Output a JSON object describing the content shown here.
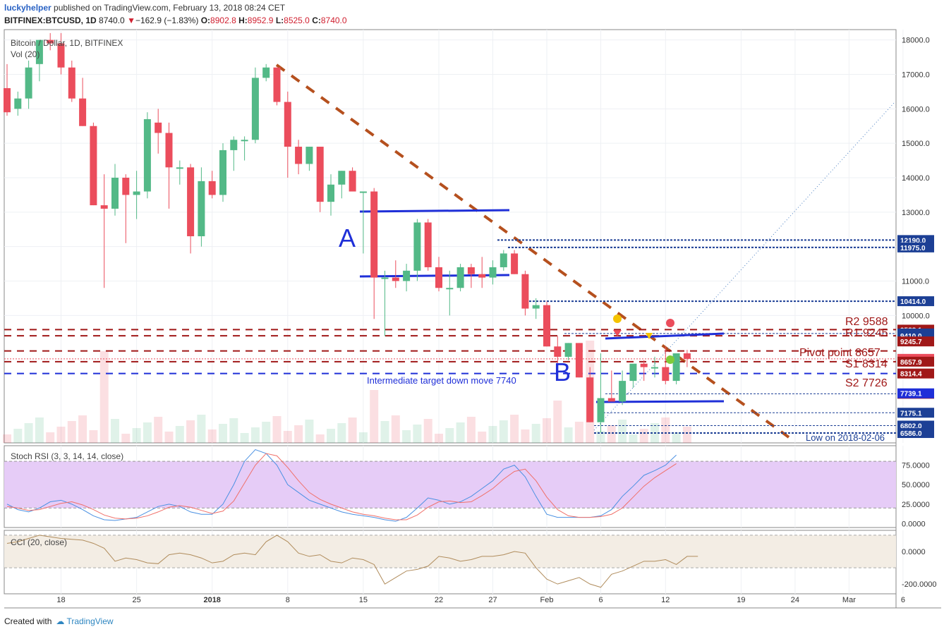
{
  "header": {
    "user": "luckyhelper",
    "published": "published on TradingView.com, February 13, 2018 08:24 CET",
    "symbol": "BITFINEX:BTCUSD, 1D",
    "last": "8740.0",
    "arrow": "▼",
    "change": "−162.9 (−1.83%)",
    "ohlc_o_label": "O:",
    "ohlc_o": "8902.8",
    "ohlc_h_label": "H:",
    "ohlc_h": "8952.9",
    "ohlc_l_label": "L:",
    "ohlc_l": "8525.0",
    "ohlc_c_label": "C:",
    "ohlc_c": "8740.0"
  },
  "footer": {
    "created": "Created with",
    "brand": "TradingView"
  },
  "colors": {
    "up": "#53b987",
    "down": "#eb4d5c",
    "trend": "#b5501e",
    "blue": "#1f2fd8",
    "pivot": "#a01818",
    "stoch_k": "#4a90e2",
    "stoch_d": "#f0706a",
    "cci": "#b08c5c"
  },
  "chart_data": [
    {
      "type": "candlestick",
      "title": "Bitcoin / Dollar, 1D, BITFINEX",
      "subtitle": "Vol (20)",
      "ylim": [
        6300,
        18300
      ],
      "y_ticks": [
        "18000.0",
        "17000.0",
        "16000.0",
        "15000.0",
        "14000.0",
        "13000.0",
        "12000.0",
        "11000.0",
        "10000.0"
      ],
      "x_ticks": [
        "18",
        "25",
        "2018",
        "8",
        "15",
        "22",
        "27",
        "Feb",
        "6",
        "12",
        "19",
        "24",
        "Mar",
        "6"
      ],
      "candles": [
        {
          "o": 16600,
          "h": 17300,
          "l": 15800,
          "c": 15900
        },
        {
          "o": 16000,
          "h": 16500,
          "l": 15800,
          "c": 16300
        },
        {
          "o": 16300,
          "h": 17400,
          "l": 16000,
          "c": 17200
        },
        {
          "o": 17300,
          "h": 18000,
          "l": 16800,
          "c": 18000
        },
        {
          "o": 18000,
          "h": 18200,
          "l": 17700,
          "c": 17900
        },
        {
          "o": 17900,
          "h": 18200,
          "l": 17000,
          "c": 17200
        },
        {
          "o": 17200,
          "h": 17400,
          "l": 16200,
          "c": 16300
        },
        {
          "o": 16300,
          "h": 16900,
          "l": 15500,
          "c": 15500
        },
        {
          "o": 15500,
          "h": 15600,
          "l": 13200,
          "c": 13200
        },
        {
          "o": 13200,
          "h": 14100,
          "l": 10800,
          "c": 13100
        },
        {
          "o": 13100,
          "h": 14400,
          "l": 12900,
          "c": 14000
        },
        {
          "o": 14000,
          "h": 14100,
          "l": 12100,
          "c": 13500
        },
        {
          "o": 13500,
          "h": 14200,
          "l": 12800,
          "c": 13600
        },
        {
          "o": 13600,
          "h": 15900,
          "l": 13400,
          "c": 15700
        },
        {
          "o": 15600,
          "h": 16000,
          "l": 14700,
          "c": 15300
        },
        {
          "o": 15300,
          "h": 15600,
          "l": 13100,
          "c": 14300
        },
        {
          "o": 14300,
          "h": 14500,
          "l": 13800,
          "c": 14300
        },
        {
          "o": 14300,
          "h": 14400,
          "l": 11800,
          "c": 12300
        },
        {
          "o": 12300,
          "h": 14300,
          "l": 12000,
          "c": 13900
        },
        {
          "o": 13900,
          "h": 14200,
          "l": 13400,
          "c": 13500
        },
        {
          "o": 13500,
          "h": 15000,
          "l": 13300,
          "c": 14800
        },
        {
          "o": 14800,
          "h": 15200,
          "l": 14200,
          "c": 15100
        },
        {
          "o": 15100,
          "h": 15200,
          "l": 14500,
          "c": 15100
        },
        {
          "o": 15100,
          "h": 17200,
          "l": 15000,
          "c": 16900
        },
        {
          "o": 16900,
          "h": 17300,
          "l": 16800,
          "c": 17200
        },
        {
          "o": 17200,
          "h": 17200,
          "l": 16100,
          "c": 16200
        },
        {
          "o": 16200,
          "h": 16500,
          "l": 14000,
          "c": 14900
        },
        {
          "o": 14900,
          "h": 15100,
          "l": 14100,
          "c": 14400
        },
        {
          "o": 14400,
          "h": 14900,
          "l": 14200,
          "c": 14900
        },
        {
          "o": 14900,
          "h": 14900,
          "l": 13000,
          "c": 13300
        },
        {
          "o": 13300,
          "h": 14100,
          "l": 12900,
          "c": 13800
        },
        {
          "o": 13800,
          "h": 14200,
          "l": 13400,
          "c": 14200
        },
        {
          "o": 14200,
          "h": 14300,
          "l": 13600,
          "c": 13600
        },
        {
          "o": 13600,
          "h": 13600,
          "l": 11800,
          "c": 13600
        },
        {
          "o": 13600,
          "h": 13700,
          "l": 9900,
          "c": 11100
        },
        {
          "o": 11100,
          "h": 11300,
          "l": 9400,
          "c": 11100
        },
        {
          "o": 11100,
          "h": 11600,
          "l": 10800,
          "c": 11000
        },
        {
          "o": 11000,
          "h": 11500,
          "l": 10700,
          "c": 11300
        },
        {
          "o": 11300,
          "h": 12800,
          "l": 11000,
          "c": 12700
        },
        {
          "o": 12700,
          "h": 12800,
          "l": 11300,
          "c": 11400
        },
        {
          "o": 11400,
          "h": 11700,
          "l": 10700,
          "c": 10800
        },
        {
          "o": 10800,
          "h": 11300,
          "l": 10000,
          "c": 10800
        },
        {
          "o": 10800,
          "h": 11500,
          "l": 10700,
          "c": 11400
        },
        {
          "o": 11400,
          "h": 11500,
          "l": 10800,
          "c": 11200
        },
        {
          "o": 11200,
          "h": 11700,
          "l": 10800,
          "c": 11100
        },
        {
          "o": 11100,
          "h": 11600,
          "l": 10900,
          "c": 11400
        },
        {
          "o": 11400,
          "h": 11900,
          "l": 11300,
          "c": 11800
        },
        {
          "o": 11800,
          "h": 11900,
          "l": 11200,
          "c": 11200
        },
        {
          "o": 11200,
          "h": 11300,
          "l": 10000,
          "c": 10200
        },
        {
          "o": 10200,
          "h": 10500,
          "l": 9900,
          "c": 10300
        },
        {
          "o": 10300,
          "h": 10400,
          "l": 9100,
          "c": 9100
        },
        {
          "o": 9100,
          "h": 9400,
          "l": 8600,
          "c": 8800
        },
        {
          "o": 8800,
          "h": 9200,
          "l": 8700,
          "c": 9200
        },
        {
          "o": 9200,
          "h": 9200,
          "l": 8200,
          "c": 8200
        },
        {
          "o": 8200,
          "h": 8500,
          "l": 6900,
          "c": 6900
        },
        {
          "o": 6900,
          "h": 8900,
          "l": 6600,
          "c": 7600
        },
        {
          "o": 7600,
          "h": 8400,
          "l": 7500,
          "c": 7500
        },
        {
          "o": 7500,
          "h": 8400,
          "l": 7400,
          "c": 8100
        },
        {
          "o": 8100,
          "h": 8500,
          "l": 7900,
          "c": 8600
        },
        {
          "o": 8600,
          "h": 8700,
          "l": 8100,
          "c": 8500
        },
        {
          "o": 8500,
          "h": 8800,
          "l": 8200,
          "c": 8500
        },
        {
          "o": 8500,
          "h": 9100,
          "l": 8000,
          "c": 8100
        },
        {
          "o": 8100,
          "h": 8900,
          "l": 8000,
          "c": 8900
        },
        {
          "o": 8900,
          "h": 9000,
          "l": 8500,
          "c": 8740
        }
      ],
      "price_labels": [
        {
          "price": 12190.0,
          "text": "12190.0",
          "bg": "#1c3f95"
        },
        {
          "price": 11975.0,
          "text": "11975.0",
          "bg": "#1c3f95"
        },
        {
          "price": 10414.0,
          "text": "10414.0",
          "bg": "#1c3f95"
        },
        {
          "price": 9588.1,
          "text": "9588.1",
          "bg": "#a01818"
        },
        {
          "price": 9477.6,
          "text": "9477.6",
          "bg": "#1c3f95"
        },
        {
          "price": 9410.0,
          "text": "9410.0",
          "bg": "#1c3f95"
        },
        {
          "price": 9245.7,
          "text": "9245.7",
          "bg": "#a01818"
        },
        {
          "price": 8740.0,
          "text": "8740.0",
          "bg": "#eb4d5c"
        },
        {
          "price": 8657.9,
          "text": "8657.9",
          "bg": "#a01818"
        },
        {
          "price": 8314.4,
          "text": "8314.4",
          "bg": "#a01818"
        },
        {
          "price": 7726.4,
          "text": "7726.4",
          "bg": "#a01818"
        },
        {
          "price": 7739.1,
          "text": "7739.1",
          "bg": "#1f2fd8"
        },
        {
          "price": 7175.1,
          "text": "7175.1",
          "bg": "#1c3f95"
        },
        {
          "price": 6802.0,
          "text": "6802.0",
          "bg": "#1c3f95"
        },
        {
          "price": 6586.0,
          "text": "6586.0",
          "bg": "#1c3f95"
        }
      ],
      "annotations": {
        "a": "A",
        "b": "B",
        "r2": "R2 9588",
        "r1": "R1 9245",
        "pivot": "Pivot point 8657",
        "s1": "S1 8314",
        "s2": "S2 7726",
        "target": "Intermediate target down move 7740",
        "low": "Low on 2018-02-06"
      }
    },
    {
      "type": "line",
      "title": "Stoch RSI (3, 3, 14, 14, close)",
      "ylim": [
        -5,
        100
      ],
      "y_ticks": [
        "75.0000",
        "50.0000",
        "25.0000",
        "0.0000"
      ],
      "series": [
        {
          "name": "K",
          "values": [
            25,
            18,
            15,
            20,
            28,
            30,
            25,
            18,
            10,
            5,
            4,
            6,
            8,
            15,
            22,
            25,
            22,
            15,
            12,
            12,
            25,
            50,
            80,
            95,
            90,
            75,
            50,
            40,
            30,
            25,
            20,
            15,
            12,
            10,
            8,
            5,
            3,
            8,
            20,
            33,
            30,
            25,
            28,
            35,
            45,
            55,
            70,
            75,
            60,
            35,
            12,
            8,
            8,
            8,
            8,
            10,
            18,
            35,
            48,
            62,
            68,
            75,
            88
          ]
        },
        {
          "name": "D",
          "values": [
            22,
            20,
            17,
            18,
            22,
            26,
            28,
            24,
            18,
            11,
            7,
            6,
            7,
            10,
            15,
            21,
            23,
            21,
            17,
            13,
            16,
            29,
            52,
            75,
            90,
            87,
            72,
            55,
            40,
            31,
            25,
            20,
            15,
            12,
            10,
            7,
            5,
            5,
            11,
            21,
            28,
            29,
            27,
            28,
            36,
            45,
            57,
            67,
            70,
            55,
            34,
            18,
            10,
            8,
            8,
            9,
            12,
            20,
            34,
            48,
            59,
            68,
            77
          ]
        }
      ]
    },
    {
      "type": "line",
      "title": "CCI (20, close)",
      "ylim": [
        -260,
        130
      ],
      "y_ticks": [
        "0.0000",
        "-200.0000"
      ],
      "series": [
        {
          "name": "CCI",
          "values": [
            50,
            60,
            80,
            100,
            90,
            80,
            75,
            70,
            50,
            20,
            -60,
            -40,
            -50,
            -70,
            -75,
            -20,
            -10,
            -20,
            -40,
            -70,
            -60,
            -20,
            -10,
            -20,
            60,
            100,
            60,
            -10,
            -30,
            -20,
            -60,
            -70,
            -40,
            -50,
            -80,
            -200,
            -160,
            -120,
            -110,
            -90,
            -30,
            -40,
            -60,
            -50,
            -30,
            -30,
            -20,
            0,
            -10,
            -100,
            -170,
            -200,
            -180,
            -160,
            -200,
            -220,
            -140,
            -120,
            -90,
            -60,
            -60,
            -50,
            -80,
            -30,
            -30
          ]
        }
      ]
    }
  ]
}
